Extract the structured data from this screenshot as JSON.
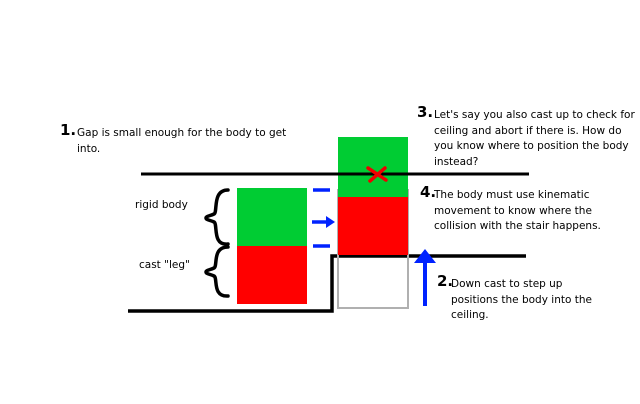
{
  "colors": {
    "body_green": "#00cc33",
    "leg_red": "#ff0000",
    "arrow_blue": "#0022ff",
    "cross_red": "#ee0000",
    "ghost_gray": "#b0b0b0",
    "line_black": "#000000"
  },
  "labels": {
    "rigid_body": "rigid body",
    "cast_leg": "cast \"leg\""
  },
  "notes": [
    {
      "num": "1.",
      "text": "Gap is small enough for the body to get into."
    },
    {
      "num": "2.",
      "text": "Down cast to step up positions the body into the ceiling."
    },
    {
      "num": "3.",
      "text": "Let's say you also cast up to check for ceiling and abort if there is. How do you know where to position the body instead?"
    },
    {
      "num": "4.",
      "text": "The body must use kinematic movement to know where the collision with the stair happens."
    }
  ]
}
